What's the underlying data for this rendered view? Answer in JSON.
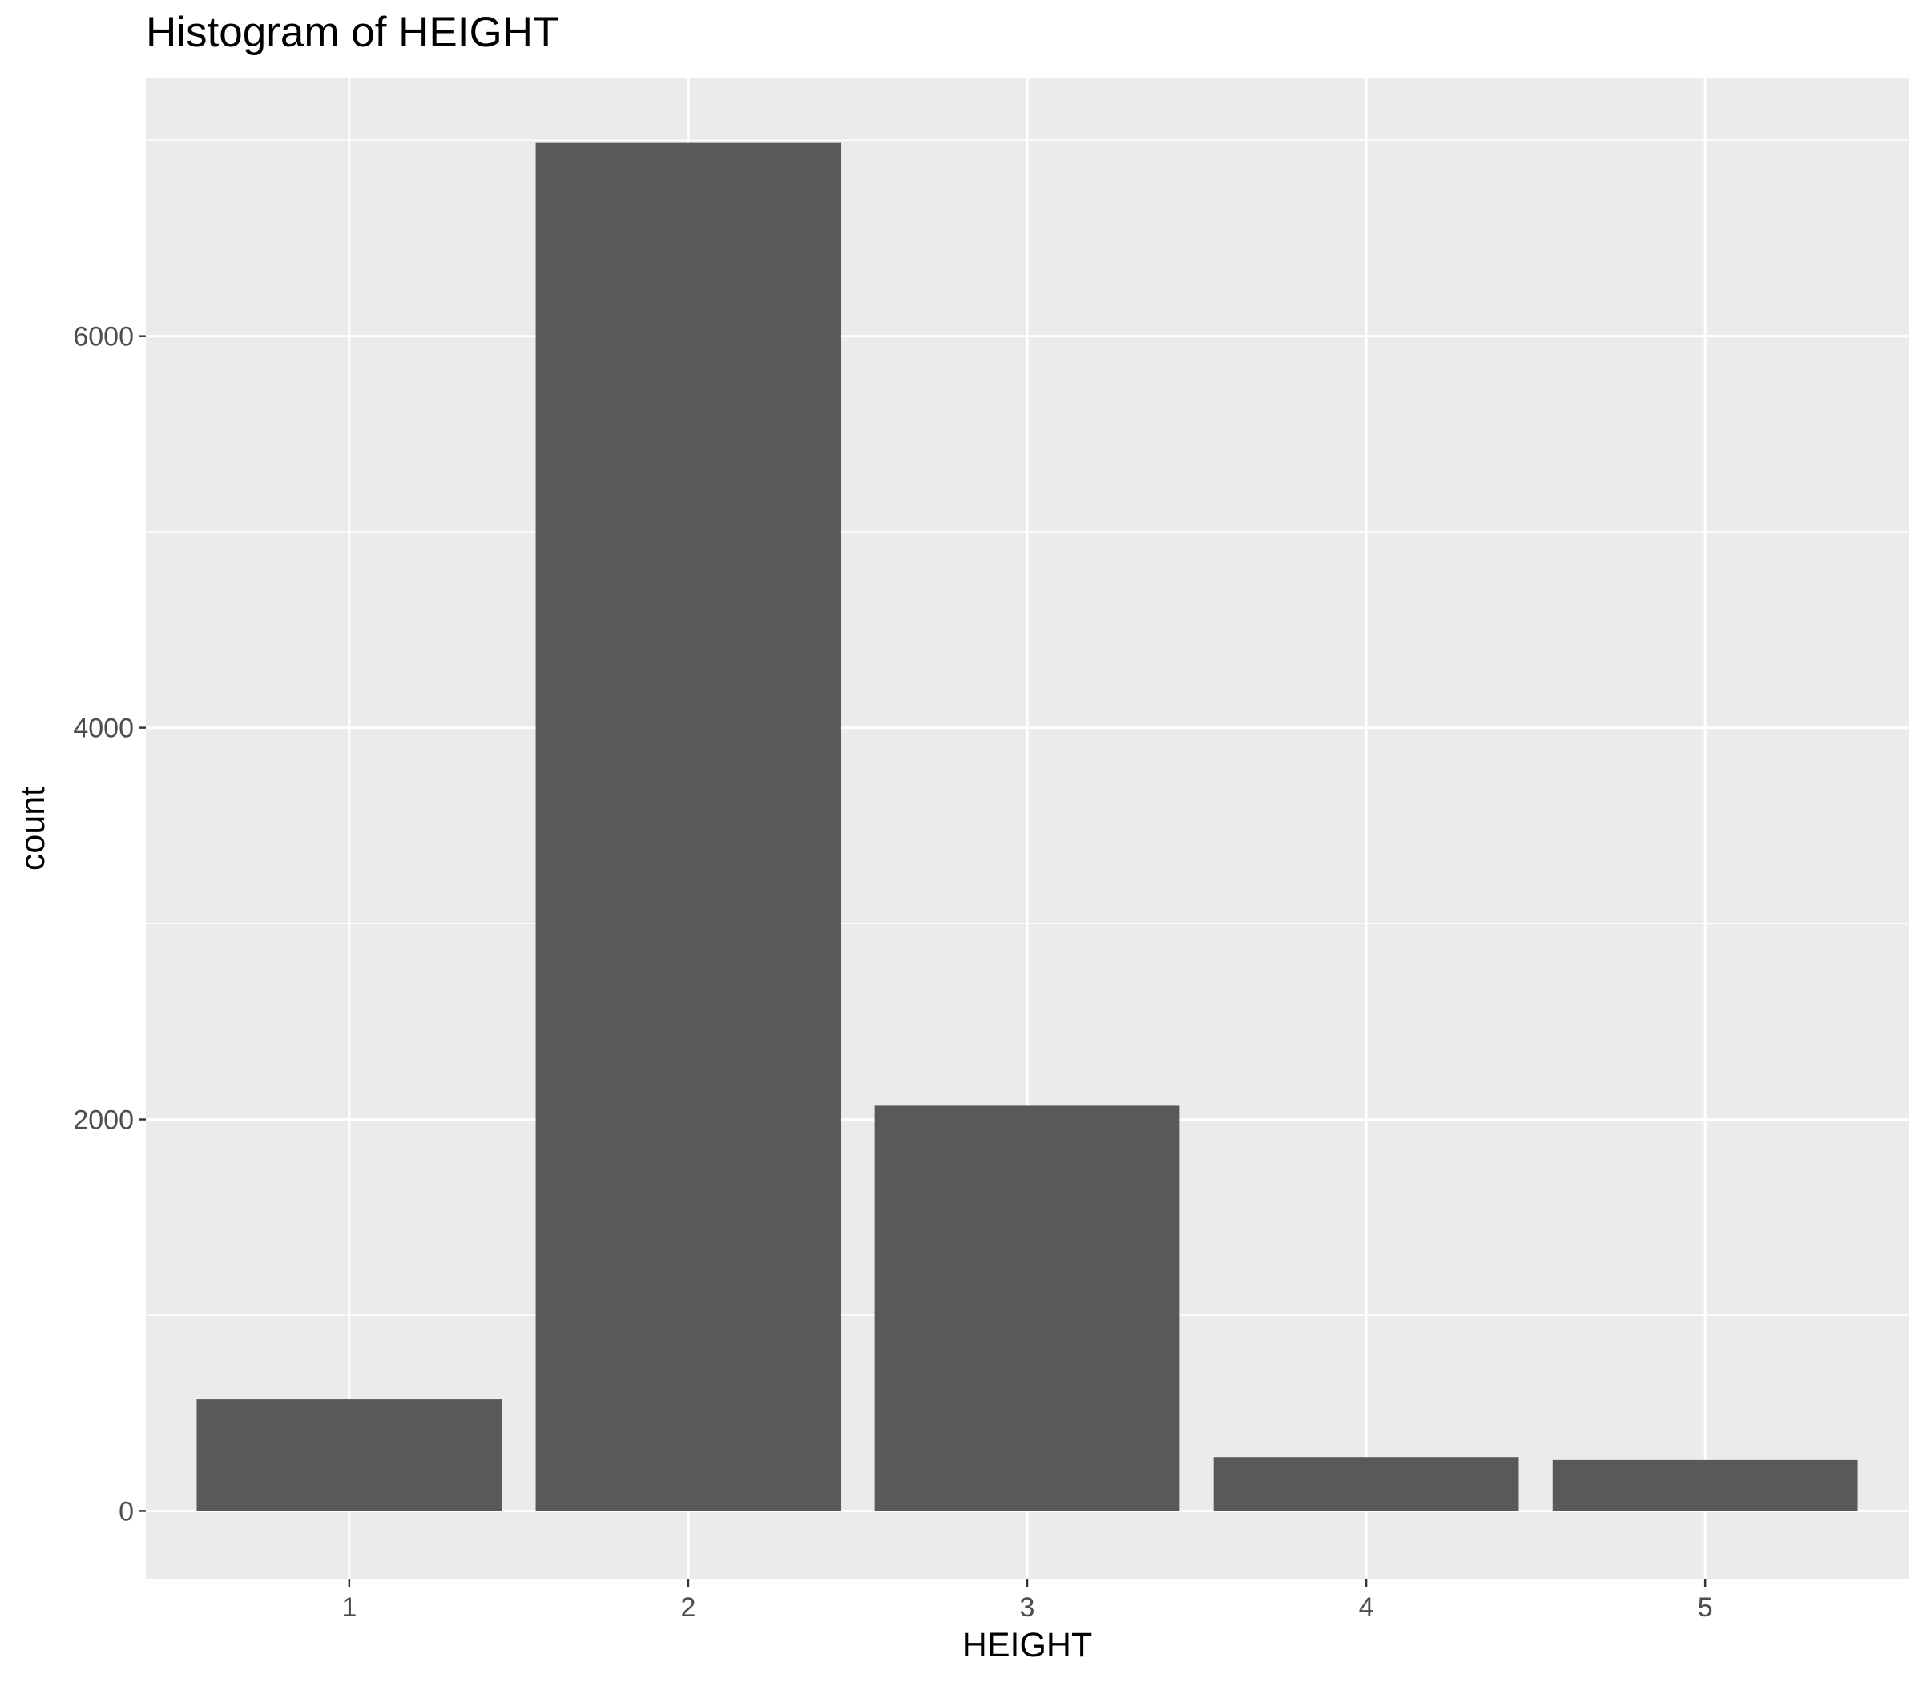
{
  "chart_data": {
    "type": "bar",
    "title": "Histogram of HEIGHT",
    "xlabel": "HEIGHT",
    "ylabel": "count",
    "categories": [
      "1",
      "2",
      "3",
      "4",
      "5"
    ],
    "values": [
      570,
      6990,
      2070,
      275,
      260
    ],
    "x_ticks": [
      "1",
      "2",
      "3",
      "4",
      "5"
    ],
    "y_ticks": [
      "0",
      "2000",
      "4000",
      "6000"
    ],
    "ylim": [
      -350,
      7320
    ],
    "grid": true,
    "colors": {
      "bar": "#595959",
      "panel": "#ebebeb",
      "grid": "#ffffff"
    }
  }
}
